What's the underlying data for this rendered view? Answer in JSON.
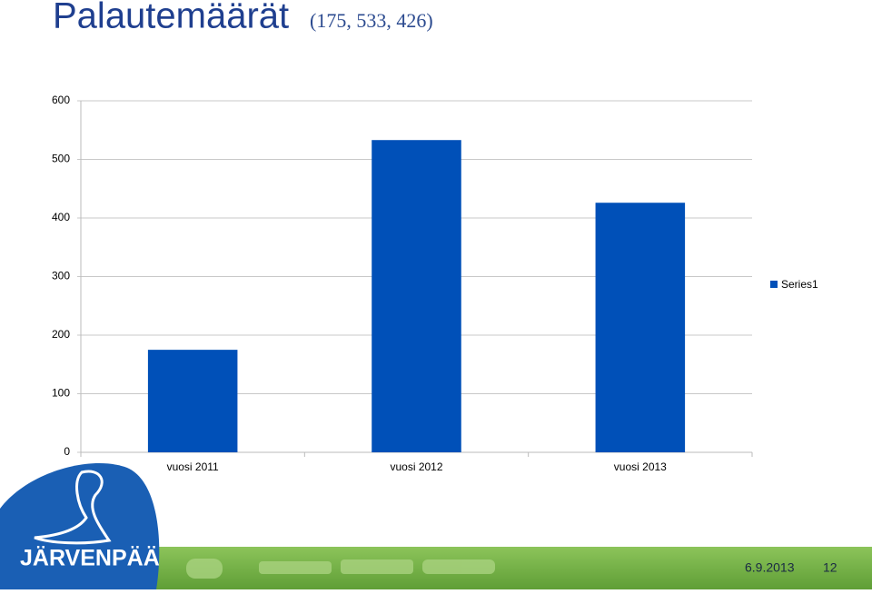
{
  "chart_data": {
    "type": "bar",
    "title": "Palautemäärät",
    "subtitle": "(175, 533, 426)",
    "categories": [
      "vuosi 2011",
      "vuosi 2012",
      "vuosi 2013"
    ],
    "series": [
      {
        "name": "Series1",
        "color": "#0050b8",
        "values": [
          175,
          533,
          426
        ]
      }
    ],
    "ylim": [
      0,
      600
    ],
    "yticks": [
      0,
      100,
      200,
      300,
      400,
      500,
      600
    ],
    "grid": true,
    "legend": "right"
  },
  "footer": {
    "logo": "JÄRVENPÄÄ",
    "date": "6.9.2013",
    "page": "12"
  }
}
